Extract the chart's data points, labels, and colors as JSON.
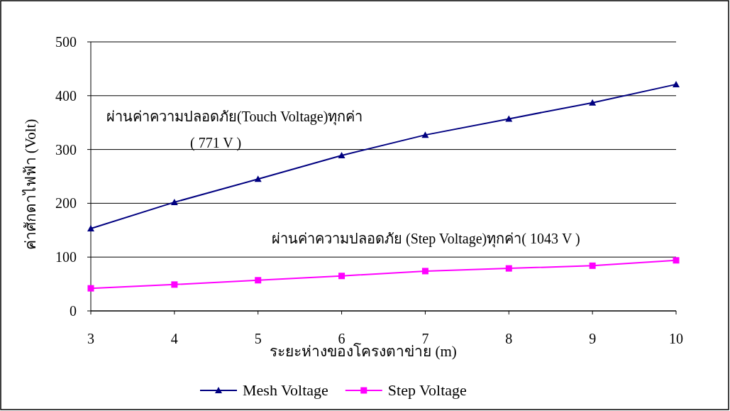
{
  "chart_data": {
    "type": "line",
    "x": [
      3,
      4,
      5,
      6,
      7,
      8,
      9,
      10
    ],
    "series": [
      {
        "name": "Mesh Voltage",
        "color": "#000080",
        "marker": "triangle",
        "values": [
          153,
          202,
          245,
          289,
          327,
          357,
          387,
          421
        ]
      },
      {
        "name": "Step Voltage",
        "color": "#ff00ff",
        "marker": "square",
        "values": [
          42,
          49,
          57,
          65,
          74,
          79,
          84,
          94
        ]
      }
    ],
    "xlabel": "ระยะห่างของโครงตาข่าย (m)",
    "ylabel": "ค่าศักดาไฟฟ้า (Volt)",
    "xlim": [
      3,
      10
    ],
    "xticks": [
      3,
      4,
      5,
      6,
      7,
      8,
      9,
      10
    ],
    "ylim": [
      0,
      500
    ],
    "yticks": [
      0,
      100,
      200,
      300,
      400,
      500
    ],
    "grid": "y",
    "legend": "bottom",
    "line_style": "solid",
    "annotations": [
      "ผ่านค่าความปลอดภัย(Touch Voltage)ทุกค่า",
      "( 771 V )",
      "ผ่านค่าความปลอดภัย (Step Voltage)ทุกค่า( 1043 V )"
    ]
  }
}
